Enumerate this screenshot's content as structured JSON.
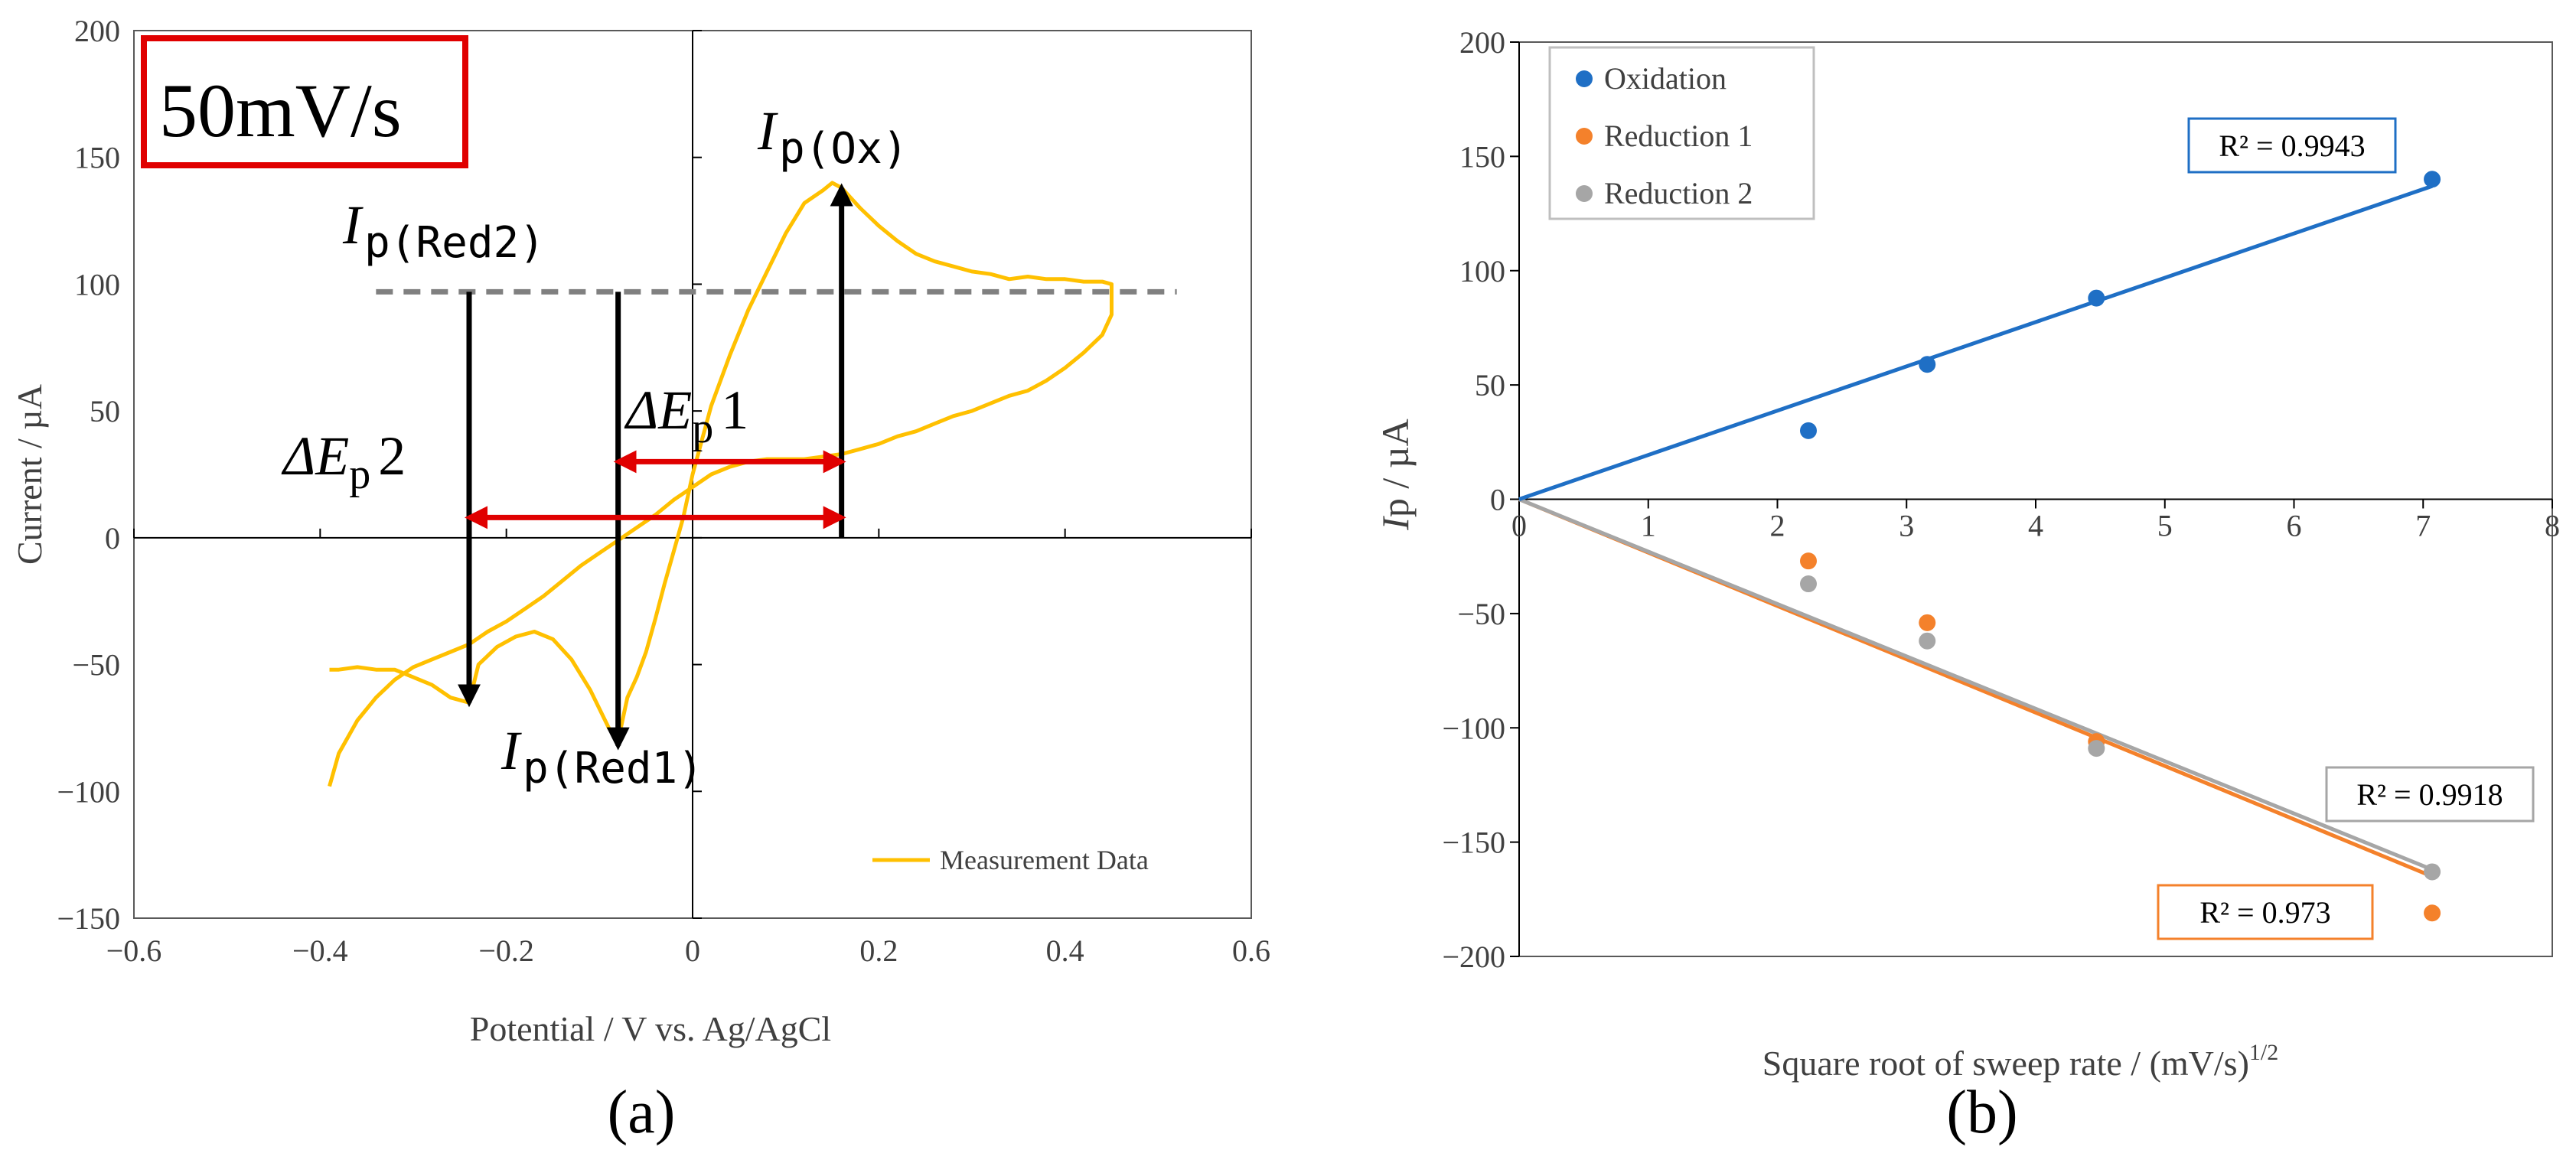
{
  "chart_data": [
    {
      "type": "line",
      "panel_label": "(a)",
      "xlabel": "Potential / V vs. Ag/AgCl",
      "ylabel": "Current / µA",
      "xlim": [
        -0.6,
        0.6
      ],
      "ylim": [
        -150,
        200
      ],
      "x_ticks": [
        -0.6,
        -0.4,
        -0.2,
        0,
        0.2,
        0.4,
        0.6
      ],
      "y_ticks": [
        -150,
        -100,
        -50,
        0,
        50,
        100,
        150,
        200
      ],
      "x_tick_labels": [
        "−0.6",
        "−0.4",
        "−0.2",
        "0",
        "0.2",
        "0.4",
        "0.6"
      ],
      "y_tick_labels": [
        "−150",
        "−100",
        "−50",
        "0",
        "50",
        "100",
        "150",
        "200"
      ],
      "grid": false,
      "legend_position": "bottom-right",
      "series": [
        {
          "name": "Measurement Data",
          "color": "#FFC000",
          "points": [
            [
              -0.39,
              -98
            ],
            [
              -0.38,
              -85
            ],
            [
              -0.36,
              -72
            ],
            [
              -0.34,
              -63
            ],
            [
              -0.32,
              -56
            ],
            [
              -0.3,
              -51
            ],
            [
              -0.28,
              -48
            ],
            [
              -0.26,
              -45
            ],
            [
              -0.24,
              -42
            ],
            [
              -0.22,
              -37
            ],
            [
              -0.2,
              -33
            ],
            [
              -0.18,
              -28
            ],
            [
              -0.16,
              -23
            ],
            [
              -0.14,
              -17
            ],
            [
              -0.12,
              -11
            ],
            [
              -0.1,
              -6
            ],
            [
              -0.08,
              -1
            ],
            [
              -0.06,
              4
            ],
            [
              -0.04,
              9
            ],
            [
              -0.02,
              15
            ],
            [
              0.0,
              20
            ],
            [
              0.02,
              25
            ],
            [
              0.04,
              28
            ],
            [
              0.06,
              30
            ],
            [
              0.08,
              31
            ],
            [
              0.1,
              31
            ],
            [
              0.12,
              31
            ],
            [
              0.14,
              32
            ],
            [
              0.16,
              33
            ],
            [
              0.18,
              35
            ],
            [
              0.2,
              37
            ],
            [
              0.22,
              40
            ],
            [
              0.24,
              42
            ],
            [
              0.26,
              45
            ],
            [
              0.28,
              48
            ],
            [
              0.3,
              50
            ],
            [
              0.32,
              53
            ],
            [
              0.34,
              56
            ],
            [
              0.36,
              58
            ],
            [
              0.38,
              62
            ],
            [
              0.4,
              67
            ],
            [
              0.42,
              73
            ],
            [
              0.44,
              80
            ],
            [
              0.45,
              88
            ],
            [
              0.45,
              100
            ],
            [
              0.44,
              101
            ],
            [
              0.42,
              101
            ],
            [
              0.4,
              102
            ],
            [
              0.38,
              102
            ],
            [
              0.36,
              103
            ],
            [
              0.34,
              102
            ],
            [
              0.32,
              104
            ],
            [
              0.3,
              105
            ],
            [
              0.28,
              107
            ],
            [
              0.26,
              109
            ],
            [
              0.24,
              112
            ],
            [
              0.22,
              117
            ],
            [
              0.2,
              123
            ],
            [
              0.18,
              130
            ],
            [
              0.16,
              138
            ],
            [
              0.15,
              140
            ],
            [
              0.14,
              137
            ],
            [
              0.12,
              132
            ],
            [
              0.1,
              120
            ],
            [
              0.08,
              105
            ],
            [
              0.06,
              90
            ],
            [
              0.04,
              72
            ],
            [
              0.02,
              52
            ],
            [
              0.0,
              25
            ],
            [
              -0.01,
              8
            ],
            [
              -0.02,
              -5
            ],
            [
              -0.03,
              -18
            ],
            [
              -0.04,
              -32
            ],
            [
              -0.05,
              -45
            ],
            [
              -0.06,
              -55
            ],
            [
              -0.07,
              -63
            ],
            [
              -0.08,
              -80
            ],
            [
              -0.09,
              -75
            ],
            [
              -0.11,
              -60
            ],
            [
              -0.13,
              -48
            ],
            [
              -0.15,
              -40
            ],
            [
              -0.17,
              -37
            ],
            [
              -0.19,
              -39
            ],
            [
              -0.21,
              -43
            ],
            [
              -0.23,
              -50
            ],
            [
              -0.24,
              -65
            ],
            [
              -0.26,
              -63
            ],
            [
              -0.28,
              -58
            ],
            [
              -0.3,
              -55
            ],
            [
              -0.32,
              -52
            ],
            [
              -0.34,
              -52
            ],
            [
              -0.36,
              -51
            ],
            [
              -0.38,
              -52
            ],
            [
              -0.39,
              -52
            ]
          ]
        }
      ],
      "annotations": {
        "sweep_rate_box": "50mV/s",
        "ip_ox": "p(Ox)",
        "ip_red1": "p(Red1)",
        "ip_red2": "p(Red2)",
        "dep1": "1",
        "dep2": "2",
        "symbol_I": "I",
        "symbol_delta_E": "ΔE",
        "subscript_p": "p",
        "reference_line_y": 97,
        "ip_red2_x": -0.24,
        "ip_red2_y": -65,
        "ip_red1_x": -0.08,
        "ip_red1_y": -82,
        "ip_ox_x": 0.16,
        "ip_ox_y": 138,
        "dep1_range": [
          -0.08,
          0.16
        ],
        "dep1_y": 30,
        "dep2_range": [
          -0.24,
          0.16
        ],
        "dep2_y": 8
      }
    },
    {
      "type": "scatter",
      "panel_label": "(b)",
      "xlabel": "Square root of sweep rate / (mV/s)",
      "xlabel_sup": "1/2",
      "ylabel_italic": "I",
      "ylabel": "p / µA",
      "xlim": [
        0,
        8
      ],
      "ylim": [
        -200,
        200
      ],
      "x_ticks": [
        0,
        1,
        2,
        3,
        4,
        5,
        6,
        7,
        8
      ],
      "y_ticks": [
        -200,
        -150,
        -100,
        -50,
        0,
        50,
        100,
        150,
        200
      ],
      "x_tick_labels": [
        "0",
        "1",
        "2",
        "3",
        "4",
        "5",
        "6",
        "7",
        "8"
      ],
      "y_tick_labels": [
        "−200",
        "−150",
        "−100",
        "−50",
        "0",
        "50",
        "100",
        "150",
        "200"
      ],
      "grid": false,
      "legend_position": "top-left",
      "series": [
        {
          "name": "Oxidation",
          "color": "#1F6FC5",
          "x": [
            2.24,
            3.16,
            4.47,
            7.07
          ],
          "y": [
            30,
            59,
            88,
            140
          ],
          "fit": [
            [
              0,
              0
            ],
            [
              7.07,
              137
            ]
          ],
          "r2_label": "R² = 0.9943"
        },
        {
          "name": "Reduction 1",
          "color": "#F4812B",
          "x": [
            2.24,
            3.16,
            4.47,
            7.07
          ],
          "y": [
            -27,
            -54,
            -106,
            -181
          ],
          "fit": [
            [
              0,
              0
            ],
            [
              7.07,
              -165
            ]
          ],
          "r2_label": "R² = 0.973"
        },
        {
          "name": "Reduction 2",
          "color": "#A6A6A6",
          "x": [
            2.24,
            3.16,
            4.47,
            7.07
          ],
          "y": [
            -37,
            -62,
            -109,
            -163
          ],
          "fit": [
            [
              0,
              0
            ],
            [
              7.07,
              -162
            ]
          ],
          "r2_label": "R² = 0.9918"
        }
      ]
    }
  ]
}
